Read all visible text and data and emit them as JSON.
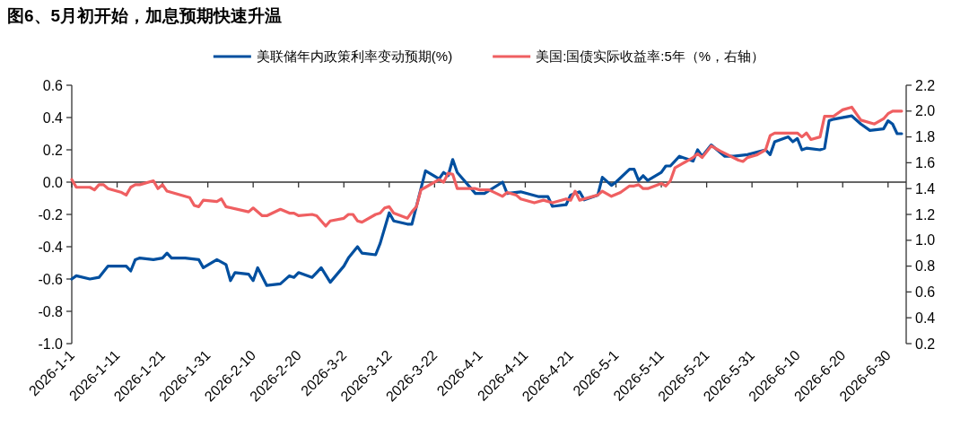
{
  "chart_data": {
    "type": "line",
    "title": "图6、5月初开始，加息预期快速升温",
    "xlim": [
      "2026-01-01",
      "2026-07-04"
    ],
    "xticks": [
      {
        "value": "2026-01-01",
        "label": "2026-1-1"
      },
      {
        "value": "2026-01-11",
        "label": "2026-1-11"
      },
      {
        "value": "2026-01-21",
        "label": "2026-1-21"
      },
      {
        "value": "2026-01-31",
        "label": "2026-1-31"
      },
      {
        "value": "2026-02-10",
        "label": "2026-2-10"
      },
      {
        "value": "2026-02-20",
        "label": "2026-2-20"
      },
      {
        "value": "2026-03-02",
        "label": "2026-3-2"
      },
      {
        "value": "2026-03-12",
        "label": "2026-3-12"
      },
      {
        "value": "2026-03-22",
        "label": "2026-3-22"
      },
      {
        "value": "2026-04-01",
        "label": "2026-4-1"
      },
      {
        "value": "2026-04-11",
        "label": "2026-4-11"
      },
      {
        "value": "2026-04-21",
        "label": "2026-4-21"
      },
      {
        "value": "2026-05-01",
        "label": "2026-5-1"
      },
      {
        "value": "2026-05-11",
        "label": "2026-5-11"
      },
      {
        "value": "2026-05-21",
        "label": "2026-5-21"
      },
      {
        "value": "2026-05-31",
        "label": "2026-5-31"
      },
      {
        "value": "2026-06-10",
        "label": "2026-6-10"
      },
      {
        "value": "2026-06-20",
        "label": "2026-6-20"
      },
      {
        "value": "2026-06-30",
        "label": "2026-6-30"
      }
    ],
    "ylim": [
      -1.0,
      0.6
    ],
    "yticks": [
      {
        "value": -1.0,
        "label": "-1.0"
      },
      {
        "value": -0.8,
        "label": "-0.8"
      },
      {
        "value": -0.6,
        "label": "-0.6"
      },
      {
        "value": -0.4,
        "label": "-0.4"
      },
      {
        "value": -0.2,
        "label": "-0.2"
      },
      {
        "value": 0,
        "label": "0.0"
      },
      {
        "value": 0.2,
        "label": "0.2"
      },
      {
        "value": 0.4,
        "label": "0.4"
      },
      {
        "value": 0.6,
        "label": "0.6"
      }
    ],
    "y2lim": [
      0.2,
      2.2
    ],
    "y2ticks": [
      {
        "value": 0.2,
        "label": "0.2"
      },
      {
        "value": 0.4,
        "label": "0.4"
      },
      {
        "value": 0.6,
        "label": "0.6"
      },
      {
        "value": 0.8,
        "label": "0.8"
      },
      {
        "value": 1.0,
        "label": "1.0"
      },
      {
        "value": 1.2,
        "label": "1.2"
      },
      {
        "value": 1.4,
        "label": "1.4"
      },
      {
        "value": 1.6,
        "label": "1.6"
      },
      {
        "value": 1.8,
        "label": "1.8"
      },
      {
        "value": 2.0,
        "label": "2.0"
      },
      {
        "value": 2.2,
        "label": "2.2"
      }
    ],
    "legend": "top",
    "series": [
      {
        "name": "美联储年内政策利率变动预期(%)",
        "color": "#004f9f",
        "x": [
          "2026-01-01",
          "2026-01-02",
          "2026-01-05",
          "2026-01-07",
          "2026-01-09",
          "2026-01-13",
          "2026-01-14",
          "2026-01-15",
          "2026-01-16",
          "2026-01-19",
          "2026-01-21",
          "2026-01-22",
          "2026-01-23",
          "2026-01-26",
          "2026-01-29",
          "2026-01-30",
          "2026-02-02",
          "2026-02-04",
          "2026-02-05",
          "2026-02-06",
          "2026-02-09",
          "2026-02-10",
          "2026-02-11",
          "2026-02-13",
          "2026-02-16",
          "2026-02-18",
          "2026-02-19",
          "2026-02-20",
          "2026-02-23",
          "2026-02-24",
          "2026-02-25",
          "2026-02-27",
          "2026-03-02",
          "2026-03-03",
          "2026-03-05",
          "2026-03-06",
          "2026-03-09",
          "2026-03-10",
          "2026-03-12",
          "2026-03-13",
          "2026-03-16",
          "2026-03-17",
          "2026-03-20",
          "2026-03-23",
          "2026-03-24",
          "2026-03-25",
          "2026-03-26",
          "2026-03-27",
          "2026-03-31",
          "2026-04-02",
          "2026-04-06",
          "2026-04-07",
          "2026-04-10",
          "2026-04-14",
          "2026-04-16",
          "2026-04-17",
          "2026-04-20",
          "2026-04-21",
          "2026-04-23",
          "2026-04-24",
          "2026-04-27",
          "2026-04-28",
          "2026-04-30",
          "2026-05-01",
          "2026-05-04",
          "2026-05-05",
          "2026-05-06",
          "2026-05-07",
          "2026-05-08",
          "2026-05-11",
          "2026-05-12",
          "2026-05-13",
          "2026-05-15",
          "2026-05-18",
          "2026-05-19",
          "2026-05-20",
          "2026-05-22",
          "2026-05-25",
          "2026-05-27",
          "2026-05-30",
          "2026-06-03",
          "2026-06-04",
          "2026-06-05",
          "2026-06-08",
          "2026-06-09",
          "2026-06-10",
          "2026-06-11",
          "2026-06-12",
          "2026-06-15",
          "2026-06-16",
          "2026-06-17",
          "2026-06-18",
          "2026-06-22",
          "2026-06-24",
          "2026-06-26",
          "2026-06-29",
          "2026-06-30",
          "2026-07-01",
          "2026-07-02",
          "2026-07-03"
        ],
        "values": [
          -0.6,
          -0.58,
          -0.6,
          -0.59,
          -0.52,
          -0.52,
          -0.55,
          -0.48,
          -0.47,
          -0.48,
          -0.47,
          -0.44,
          -0.47,
          -0.47,
          -0.48,
          -0.53,
          -0.48,
          -0.51,
          -0.61,
          -0.56,
          -0.57,
          -0.61,
          -0.53,
          -0.64,
          -0.63,
          -0.58,
          -0.59,
          -0.56,
          -0.59,
          -0.56,
          -0.53,
          -0.62,
          -0.52,
          -0.47,
          -0.4,
          -0.44,
          -0.45,
          -0.38,
          -0.19,
          -0.24,
          -0.26,
          -0.26,
          0.07,
          0.02,
          0.06,
          0.04,
          0.14,
          0.06,
          -0.07,
          -0.07,
          0.0,
          -0.07,
          -0.06,
          -0.09,
          -0.09,
          -0.15,
          -0.14,
          -0.08,
          -0.06,
          -0.11,
          -0.08,
          0.03,
          -0.02,
          0.0,
          0.08,
          0.08,
          0.01,
          0.04,
          0.01,
          0.06,
          0.1,
          0.1,
          0.16,
          0.13,
          0.2,
          0.16,
          0.23,
          0.16,
          0.16,
          0.17,
          0.2,
          0.17,
          0.25,
          0.28,
          0.25,
          0.27,
          0.2,
          0.21,
          0.2,
          0.21,
          0.38,
          0.39,
          0.41,
          0.36,
          0.32,
          0.33,
          0.38,
          0.36,
          0.3,
          0.3
        ]
      },
      {
        "name": "美国:国债实际收益率:5年（%，右轴）",
        "color": "#ef5f61",
        "axis": "y2",
        "x": [
          "2026-01-01",
          "2026-01-02",
          "2026-01-05",
          "2026-01-06",
          "2026-01-07",
          "2026-01-08",
          "2026-01-09",
          "2026-01-12",
          "2026-01-13",
          "2026-01-14",
          "2026-01-15",
          "2026-01-16",
          "2026-01-19",
          "2026-01-20",
          "2026-01-21",
          "2026-01-22",
          "2026-01-27",
          "2026-01-28",
          "2026-01-29",
          "2026-01-30",
          "2026-02-02",
          "2026-02-03",
          "2026-02-04",
          "2026-02-09",
          "2026-02-10",
          "2026-02-12",
          "2026-02-13",
          "2026-02-16",
          "2026-02-18",
          "2026-02-19",
          "2026-02-20",
          "2026-02-23",
          "2026-02-24",
          "2026-02-26",
          "2026-02-27",
          "2026-03-02",
          "2026-03-03",
          "2026-03-04",
          "2026-03-05",
          "2026-03-06",
          "2026-03-09",
          "2026-03-10",
          "2026-03-11",
          "2026-03-12",
          "2026-03-13",
          "2026-03-16",
          "2026-03-17",
          "2026-03-18",
          "2026-03-19",
          "2026-03-20",
          "2026-03-23",
          "2026-03-24",
          "2026-03-25",
          "2026-03-26",
          "2026-03-27",
          "2026-03-31",
          "2026-04-01",
          "2026-04-03",
          "2026-04-06",
          "2026-04-07",
          "2026-04-09",
          "2026-04-10",
          "2026-04-13",
          "2026-04-15",
          "2026-04-17",
          "2026-04-20",
          "2026-04-21",
          "2026-04-22",
          "2026-04-23",
          "2026-04-27",
          "2026-04-28",
          "2026-04-30",
          "2026-05-02",
          "2026-05-04",
          "2026-05-05",
          "2026-05-06",
          "2026-05-07",
          "2026-05-08",
          "2026-05-11",
          "2026-05-12",
          "2026-05-13",
          "2026-05-14",
          "2026-05-18",
          "2026-05-19",
          "2026-05-20",
          "2026-05-22",
          "2026-05-24",
          "2026-05-28",
          "2026-05-29",
          "2026-05-30",
          "2026-06-01",
          "2026-06-03",
          "2026-06-04",
          "2026-06-05",
          "2026-06-09",
          "2026-06-10",
          "2026-06-11",
          "2026-06-12",
          "2026-06-13",
          "2026-06-15",
          "2026-06-16",
          "2026-06-18",
          "2026-06-20",
          "2026-06-22",
          "2026-06-24",
          "2026-06-27",
          "2026-06-29",
          "2026-06-30",
          "2026-07-01",
          "2026-07-03"
        ],
        "values": [
          1.47,
          1.41,
          1.41,
          1.39,
          1.43,
          1.43,
          1.4,
          1.37,
          1.35,
          1.41,
          1.43,
          1.43,
          1.46,
          1.4,
          1.43,
          1.38,
          1.33,
          1.27,
          1.26,
          1.31,
          1.3,
          1.32,
          1.26,
          1.22,
          1.25,
          1.19,
          1.19,
          1.24,
          1.21,
          1.21,
          1.19,
          1.2,
          1.19,
          1.11,
          1.15,
          1.17,
          1.2,
          1.2,
          1.15,
          1.14,
          1.2,
          1.21,
          1.25,
          1.26,
          1.21,
          1.17,
          1.22,
          1.26,
          1.39,
          1.41,
          1.47,
          1.45,
          1.52,
          1.51,
          1.4,
          1.4,
          1.39,
          1.39,
          1.34,
          1.37,
          1.35,
          1.32,
          1.29,
          1.31,
          1.29,
          1.32,
          1.31,
          1.38,
          1.31,
          1.35,
          1.38,
          1.34,
          1.37,
          1.42,
          1.42,
          1.43,
          1.4,
          1.4,
          1.44,
          1.42,
          1.46,
          1.56,
          1.64,
          1.67,
          1.64,
          1.73,
          1.69,
          1.62,
          1.61,
          1.64,
          1.66,
          1.7,
          1.81,
          1.83,
          1.83,
          1.83,
          1.8,
          1.83,
          1.78,
          1.8,
          1.96,
          1.96,
          2.01,
          2.03,
          1.93,
          1.9,
          1.94,
          1.98,
          2.0,
          2.0
        ]
      }
    ]
  }
}
